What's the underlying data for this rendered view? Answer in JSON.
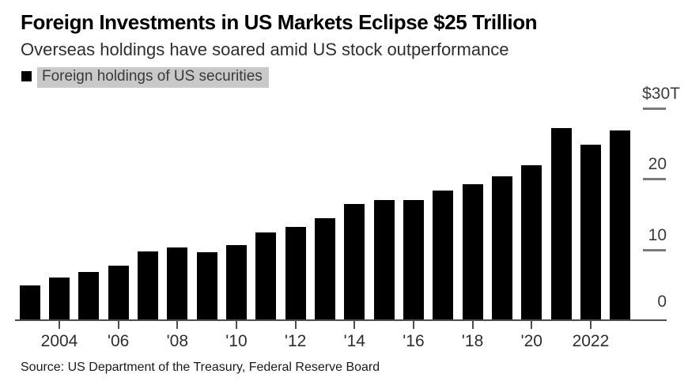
{
  "header": {
    "title": "Foreign Investments in US Markets Eclipse $25 Trillion",
    "subtitle": "Overseas holdings have soared amid US stock outperformance"
  },
  "legend": {
    "label": "Foreign holdings of US securities",
    "marker_color": "#000000",
    "highlight_color": "#c9c9c9"
  },
  "chart_data": {
    "type": "bar",
    "title": "Foreign Investments in US Markets Eclipse $25 Trillion",
    "subtitle": "Overseas holdings have soared amid US stock outperformance",
    "series_name": "Foreign holdings of US securities",
    "unit": "USD trillions",
    "categories": [
      2003,
      2004,
      2005,
      2006,
      2007,
      2008,
      2009,
      2010,
      2011,
      2012,
      2013,
      2014,
      2015,
      2016,
      2017,
      2018,
      2019,
      2020,
      2021,
      2022,
      2023
    ],
    "values": [
      4.9,
      6.0,
      6.8,
      7.7,
      9.7,
      10.3,
      9.6,
      10.6,
      12.4,
      13.2,
      14.4,
      16.4,
      17.0,
      17.0,
      18.4,
      19.3,
      20.4,
      21.9,
      27.2,
      24.9,
      26.9
    ],
    "bar_color": "#000000",
    "ylim": [
      0,
      30
    ],
    "yticks": [
      {
        "value": 30,
        "label": "$30T"
      },
      {
        "value": 20,
        "label": "20"
      },
      {
        "value": 10,
        "label": "10"
      },
      {
        "value": 0,
        "label": "0"
      }
    ],
    "xticks": [
      {
        "year": 2004,
        "label": "2004"
      },
      {
        "year": 2006,
        "label": "'06"
      },
      {
        "year": 2008,
        "label": "'08"
      },
      {
        "year": 2010,
        "label": "'10"
      },
      {
        "year": 2012,
        "label": "'12"
      },
      {
        "year": 2014,
        "label": "'14"
      },
      {
        "year": 2016,
        "label": "'16"
      },
      {
        "year": 2018,
        "label": "'18"
      },
      {
        "year": 2020,
        "label": "'20"
      },
      {
        "year": 2022,
        "label": "2022"
      }
    ],
    "legend_position": "top-left",
    "grid": "off",
    "axis_style": "baseline with right-side tick dashes"
  },
  "source": {
    "text": "Source: US Department of the Treasury, Federal Reserve Board"
  }
}
